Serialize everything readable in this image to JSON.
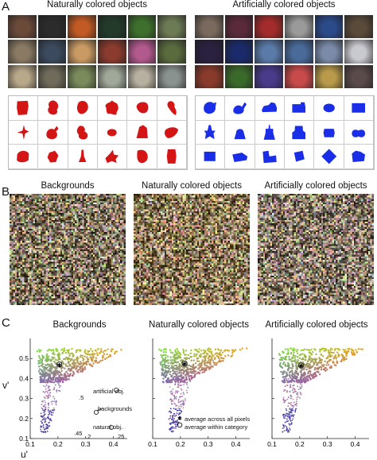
{
  "panel_a": {
    "letter": "A",
    "natural_title": "Naturally colored objects",
    "artificial_title": "Artificially colored objects",
    "natural_photos": [
      "#6b4a3a",
      "#2b2b2b",
      "#c15a24",
      "#233a2a",
      "#3e6f2c",
      "#6d7b55",
      "#8a7a64",
      "#3b4a5e",
      "#c99a63",
      "#8a3b2e",
      "#b2598e",
      "#5a6b3e",
      "#b8a88a",
      "#6f6a5a",
      "#7a8a5a",
      "#a0a89a",
      "#b7b0a0",
      "#8a9290"
    ],
    "artificial_photos": [
      "#7a6a5e",
      "#5a2a3a",
      "#a42b2b",
      "#9a9a9a",
      "#2b4a8a",
      "#5a4a3a",
      "#2a2040",
      "#1a2a6a",
      "#5a7aa8",
      "#4a6a9a",
      "#7a8aa8",
      "#c9c9d0",
      "#8a3a2a",
      "#3a6a2a",
      "#4a3a8a",
      "#c94a4a",
      "#b89a4a",
      "#5a4a4a"
    ],
    "silhouette_colors": {
      "natural": "#d41515",
      "artificial": "#1a2ee8"
    }
  },
  "panel_b": {
    "letter": "B",
    "titles": [
      "Backgrounds",
      "Naturally colored objects",
      "Artificially colored objects"
    ]
  },
  "panel_c": {
    "letter": "C",
    "titles": [
      "Backgrounds",
      "Naturally colored objects",
      "Artificially colored objects"
    ],
    "ylabel": "v'",
    "xlabel": "u'",
    "annotations": {
      "artificial": "artificial obj.",
      "backgrounds": "backgrounds",
      "natural": "natural obj.",
      "inset_ticks": [
        ".5",
        ".45",
        ".2",
        ".25"
      ],
      "legend_all": "average across all pixels",
      "legend_cat": "average within category"
    }
  },
  "chart_data": [
    {
      "type": "scatter",
      "title": "Backgrounds",
      "xlabel": "u'",
      "ylabel": "v'",
      "xlim": [
        0.1,
        0.45
      ],
      "ylim": [
        0.1,
        0.6
      ],
      "xticks": [
        "0.1",
        "0.2",
        "0.3",
        "0.4"
      ],
      "yticks": [
        "0.1",
        "0.2",
        "0.3",
        "0.4",
        "0.5"
      ],
      "mean_marker": {
        "x": 0.205,
        "y": 0.47
      }
    },
    {
      "type": "scatter",
      "title": "Naturally colored objects",
      "xlabel": "",
      "ylabel": "",
      "xlim": [
        0.1,
        0.45
      ],
      "ylim": [
        0.1,
        0.6
      ],
      "xticks": [
        "0.1",
        "0.2",
        "0.3",
        "0.4"
      ],
      "yticks": [],
      "mean_marker": {
        "x": 0.215,
        "y": 0.475
      }
    },
    {
      "type": "scatter",
      "title": "Artificially colored objects",
      "xlabel": "",
      "ylabel": "",
      "xlim": [
        0.1,
        0.45
      ],
      "ylim": [
        0.1,
        0.6
      ],
      "xticks": [
        "0.1",
        "0.2",
        "0.3",
        "0.4"
      ],
      "yticks": [],
      "mean_marker": {
        "x": 0.205,
        "y": 0.465
      }
    }
  ]
}
